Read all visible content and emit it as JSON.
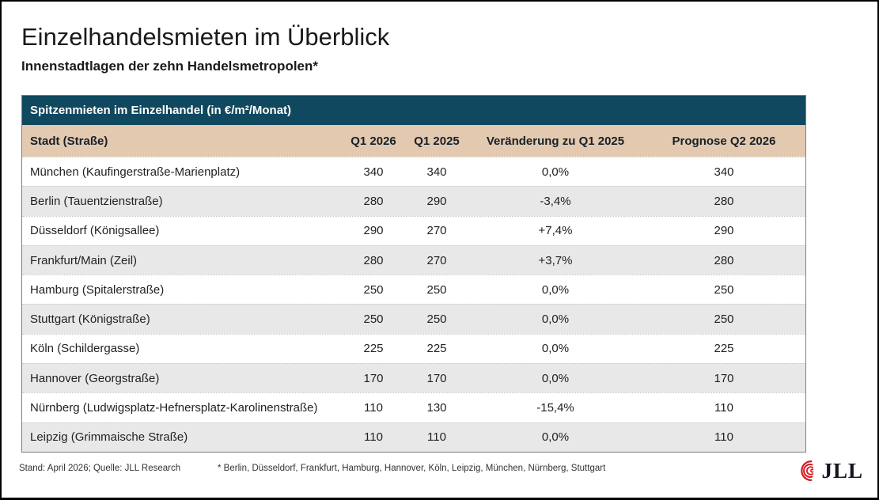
{
  "header": {
    "title": "Einzelhandelsmieten im Überblick",
    "subtitle": "Innenstadtlagen der zehn Handelsmetropolen*"
  },
  "table": {
    "caption": "Spitzenmieten im Einzelhandel (in €/m²/Monat)"
  },
  "chart_data": {
    "type": "table",
    "title": "Spitzenmieten im Einzelhandel (in €/m²/Monat)",
    "columns": [
      "Stadt (Straße)",
      "Q1 2026",
      "Q1 2025",
      "Veränderung zu Q1 2025",
      "Prognose Q2 2026"
    ],
    "rows": [
      [
        "München (Kaufingerstraße-Marienplatz)",
        "340",
        "340",
        "0,0%",
        "340"
      ],
      [
        "Berlin (Tauentzienstraße)",
        "280",
        "290",
        "-3,4%",
        "280"
      ],
      [
        "Düsseldorf (Königsallee)",
        "290",
        "270",
        "+7,4%",
        "290"
      ],
      [
        "Frankfurt/Main (Zeil)",
        "280",
        "270",
        "+3,7%",
        "280"
      ],
      [
        "Hamburg (Spitalerstraße)",
        "250",
        "250",
        "0,0%",
        "250"
      ],
      [
        "Stuttgart (Königstraße)",
        "250",
        "250",
        "0,0%",
        "250"
      ],
      [
        "Köln (Schildergasse)",
        "225",
        "225",
        "0,0%",
        "225"
      ],
      [
        "Hannover (Georgstraße)",
        "170",
        "170",
        "0,0%",
        "170"
      ],
      [
        "Nürnberg (Ludwigsplatz-Hefnersplatz-Karolinenstraße)",
        "110",
        "130",
        "-15,4%",
        "110"
      ],
      [
        "Leipzig (Grimmaische Straße)",
        "110",
        "110",
        "0,0%",
        "110"
      ]
    ],
    "unit": "€/m²/Monat",
    "zebra_striping": true
  },
  "footer": {
    "source": "Stand: April 2026; Quelle: JLL Research",
    "footnote": "* Berlin, Düsseldorf, Frankfurt, Hamburg, Hannover, Köln, Leipzig, München, Nürnberg, Stuttgart",
    "logo_text": "JLL"
  },
  "colors": {
    "caption_bar": "#10485f",
    "column_header": "#e3c9af",
    "row_alternate": "#e8e8e8",
    "logo_red": "#d71920"
  }
}
